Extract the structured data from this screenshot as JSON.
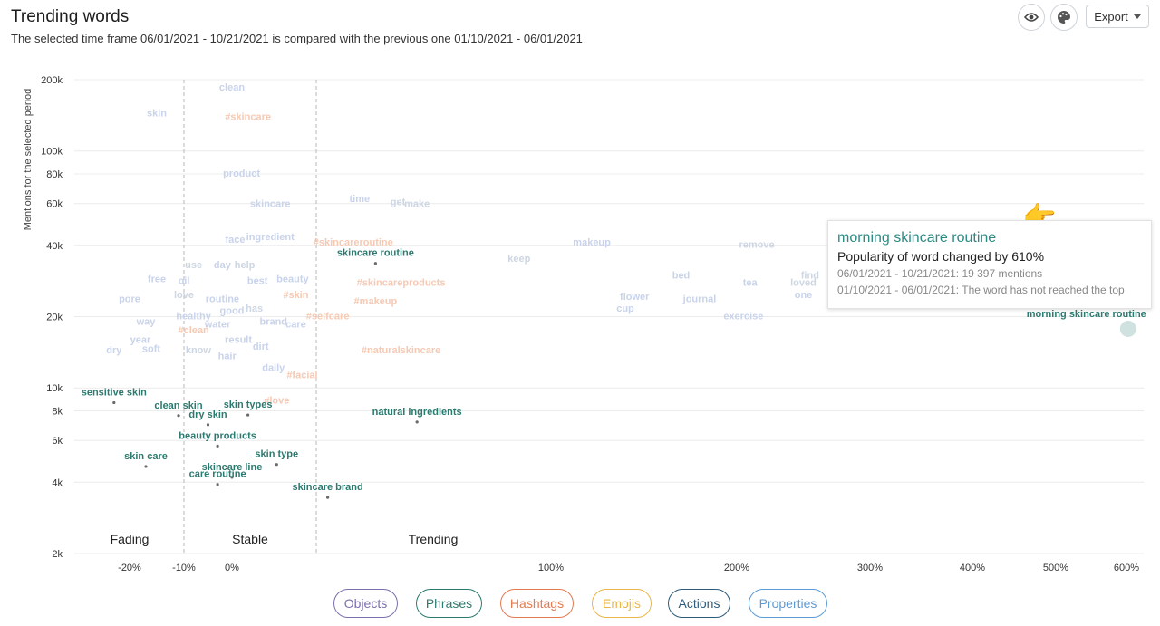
{
  "header": {
    "title": "Trending words",
    "subtitle": "The selected time frame 06/01/2021 - 10/21/2021 is compared with the previous one 01/10/2021 - 06/01/2021"
  },
  "toolbar": {
    "visibility_icon": "eye-icon",
    "palette_icon": "palette-icon",
    "export_label": "Export"
  },
  "tooltip": {
    "title": "morning skincare routine",
    "change": "Popularity of word changed by 610%",
    "current": "06/01/2021 - 10/21/2021: 19 397 mentions",
    "previous": "01/10/2021 - 06/01/2021: The word has not reached the top"
  },
  "filters": [
    {
      "label": "Objects",
      "color": "#7b6fae"
    },
    {
      "label": "Phrases",
      "color": "#2b7a6f"
    },
    {
      "label": "Hashtags",
      "color": "#e27b52"
    },
    {
      "label": "Emojis",
      "color": "#e8b64a"
    },
    {
      "label": "Actions",
      "color": "#2e5b7a"
    },
    {
      "label": "Properties",
      "color": "#5b9bd5"
    }
  ],
  "chart_data": {
    "type": "scatter",
    "title": "Trending words",
    "xlabel": "",
    "ylabel": "Mentions for the selected period",
    "y_scale": "log",
    "ylim": [
      2000,
      200000
    ],
    "y_ticks": [
      "200k",
      "100k",
      "80k",
      "60k",
      "40k",
      "20k",
      "10k",
      "8k",
      "6k",
      "4k",
      "2k"
    ],
    "x_ticks": [
      "-20%",
      "-10%",
      "0%",
      "100%",
      "200%",
      "300%",
      "400%",
      "500%",
      "600%"
    ],
    "zones": [
      "Fading",
      "Stable",
      "Trending"
    ],
    "grid": true,
    "colors": {
      "phrase": "#2b7a6f",
      "object_faded": "#c9d3ea",
      "hashtag_faded": "#f6c9b3",
      "action_faded": "#cdd6e3"
    },
    "highlighted": [
      {
        "label": "sensitive skin",
        "x": -22,
        "y": 9300
      },
      {
        "label": "clean skin",
        "x": -11,
        "y": 8200
      },
      {
        "label": "skin types",
        "x": 5,
        "y": 8250
      },
      {
        "label": "dry skin",
        "x": -5,
        "y": 7500
      },
      {
        "label": "natural ingredients",
        "x": 58,
        "y": 7700
      },
      {
        "label": "beauty products",
        "x": -3,
        "y": 6100
      },
      {
        "label": "skin care",
        "x": -17,
        "y": 5000
      },
      {
        "label": "skin type",
        "x": 14,
        "y": 5100
      },
      {
        "label": "skincare line",
        "x": 0,
        "y": 4500
      },
      {
        "label": "care routine",
        "x": -3,
        "y": 4200
      },
      {
        "label": "skincare brand",
        "x": 30,
        "y": 3700
      },
      {
        "label": "skincare routine",
        "x": 45,
        "y": 36000
      },
      {
        "label": "morning skincare routine",
        "x": 610,
        "y": 19397
      }
    ],
    "faded": [
      {
        "label": "clean",
        "x": 0,
        "y": 180000,
        "kind": "object"
      },
      {
        "label": "skin",
        "x": -15,
        "y": 140000,
        "kind": "object"
      },
      {
        "label": "#skincare",
        "x": 5,
        "y": 135000,
        "kind": "hashtag"
      },
      {
        "label": "product",
        "x": 3,
        "y": 78000,
        "kind": "object"
      },
      {
        "label": "skincare",
        "x": 12,
        "y": 58000,
        "kind": "object"
      },
      {
        "label": "time",
        "x": 40,
        "y": 61000,
        "kind": "object"
      },
      {
        "label": "get",
        "x": 52,
        "y": 59000,
        "kind": "action"
      },
      {
        "label": "make",
        "x": 58,
        "y": 58000,
        "kind": "action"
      },
      {
        "label": "face",
        "x": 1,
        "y": 41000,
        "kind": "object"
      },
      {
        "label": "ingredient",
        "x": 12,
        "y": 42000,
        "kind": "object"
      },
      {
        "label": "#skincareroutine",
        "x": 38,
        "y": 40000,
        "kind": "hashtag"
      },
      {
        "label": "makeup",
        "x": 122,
        "y": 40000,
        "kind": "object"
      },
      {
        "label": "remove",
        "x": 215,
        "y": 39000,
        "kind": "action"
      },
      {
        "label": "keep",
        "x": 90,
        "y": 34000,
        "kind": "action"
      },
      {
        "label": "use",
        "x": -8,
        "y": 32000,
        "kind": "action"
      },
      {
        "label": "day",
        "x": -2,
        "y": 32000,
        "kind": "object"
      },
      {
        "label": "help",
        "x": 4,
        "y": 32000,
        "kind": "action"
      },
      {
        "label": "bed",
        "x": 170,
        "y": 29000,
        "kind": "object"
      },
      {
        "label": "find",
        "x": 255,
        "y": 29000,
        "kind": "action"
      },
      {
        "label": "free",
        "x": -15,
        "y": 28000,
        "kind": "property"
      },
      {
        "label": "oil",
        "x": -10,
        "y": 27500,
        "kind": "object"
      },
      {
        "label": "best",
        "x": 8,
        "y": 27500,
        "kind": "property"
      },
      {
        "label": "beauty",
        "x": 19,
        "y": 28000,
        "kind": "object"
      },
      {
        "label": "#skincareproducts",
        "x": 53,
        "y": 27000,
        "kind": "hashtag"
      },
      {
        "label": "tea",
        "x": 210,
        "y": 27000,
        "kind": "object"
      },
      {
        "label": "loved",
        "x": 250,
        "y": 27000,
        "kind": "action"
      },
      {
        "label": "love",
        "x": -10,
        "y": 24000,
        "kind": "action"
      },
      {
        "label": "#skin",
        "x": 20,
        "y": 24000,
        "kind": "hashtag"
      },
      {
        "label": "one",
        "x": 250,
        "y": 24000,
        "kind": "object"
      },
      {
        "label": "pore",
        "x": -20,
        "y": 23000,
        "kind": "object"
      },
      {
        "label": "routine",
        "x": -2,
        "y": 23000,
        "kind": "object"
      },
      {
        "label": "#makeup",
        "x": 45,
        "y": 22500,
        "kind": "hashtag"
      },
      {
        "label": "flower",
        "x": 145,
        "y": 23500,
        "kind": "object"
      },
      {
        "label": "journal",
        "x": 180,
        "y": 23000,
        "kind": "object"
      },
      {
        "label": "cup",
        "x": 140,
        "y": 21000,
        "kind": "object"
      },
      {
        "label": "healthy",
        "x": -8,
        "y": 19500,
        "kind": "property"
      },
      {
        "label": "good",
        "x": 0,
        "y": 20500,
        "kind": "property"
      },
      {
        "label": "has",
        "x": 7,
        "y": 21000,
        "kind": "action"
      },
      {
        "label": "#selfcare",
        "x": 30,
        "y": 19500,
        "kind": "hashtag"
      },
      {
        "label": "exercise",
        "x": 205,
        "y": 19500,
        "kind": "object"
      },
      {
        "label": "way",
        "x": -17,
        "y": 18500,
        "kind": "object"
      },
      {
        "label": "brand",
        "x": 13,
        "y": 18500,
        "kind": "object"
      },
      {
        "label": "care",
        "x": 20,
        "y": 18000,
        "kind": "object"
      },
      {
        "label": "#clean",
        "x": -8,
        "y": 17000,
        "kind": "hashtag"
      },
      {
        "label": "water",
        "x": -3,
        "y": 18000,
        "kind": "object"
      },
      {
        "label": "year",
        "x": -18,
        "y": 15500,
        "kind": "object"
      },
      {
        "label": "result",
        "x": 2,
        "y": 15500,
        "kind": "object"
      },
      {
        "label": "dry",
        "x": -22,
        "y": 14000,
        "kind": "property"
      },
      {
        "label": "soft",
        "x": -16,
        "y": 14200,
        "kind": "property"
      },
      {
        "label": "know",
        "x": -7,
        "y": 14000,
        "kind": "action"
      },
      {
        "label": "hair",
        "x": -1,
        "y": 13200,
        "kind": "object"
      },
      {
        "label": "dirt",
        "x": 9,
        "y": 14500,
        "kind": "object"
      },
      {
        "label": "#naturalskincare",
        "x": 53,
        "y": 14000,
        "kind": "hashtag"
      },
      {
        "label": "daily",
        "x": 13,
        "y": 11800,
        "kind": "property"
      },
      {
        "label": "#facial",
        "x": 22,
        "y": 11000,
        "kind": "hashtag"
      },
      {
        "label": "#love",
        "x": 14,
        "y": 8600,
        "kind": "hashtag"
      }
    ]
  }
}
